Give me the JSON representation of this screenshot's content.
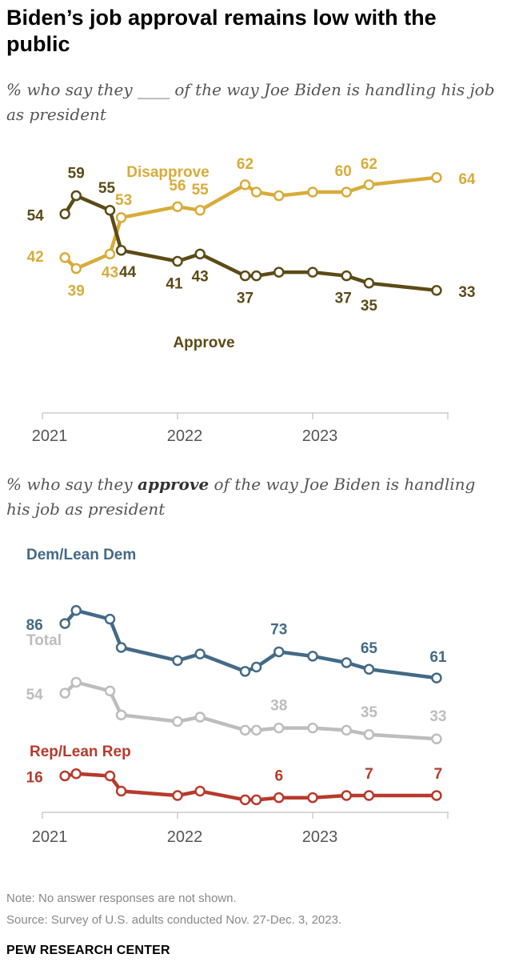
{
  "title": "Biden’s job approval remains low with the public",
  "subtitle1_pre": "% who say they ",
  "subtitle1_blank": "____",
  "subtitle1_post": " of the way Joe Biden is handling his job as president",
  "subtitle2_pre": "% who say they ",
  "subtitle2_em": "approve",
  "subtitle2_post": " of the way Joe Biden is handling his job as president",
  "note": "Note: No answer responses are not shown.",
  "source": "Source: Survey of U.S. adults conducted Nov. 27-Dec. 3, 2023.",
  "brand": "PEW RESEARCH CENTER",
  "colors": {
    "approve": "#5c4b16",
    "disapprove": "#d8ac3a",
    "dem": "#436a87",
    "total": "#bdbdbd",
    "rep": "#b73a2c",
    "axis": "#cccccc",
    "tick_text": "#555555"
  },
  "chart_data": [
    {
      "type": "line",
      "x": [
        "2021-03",
        "2021-04",
        "2021-07",
        "2021-08",
        "2022-01",
        "2022-03",
        "2022-07",
        "2022-08",
        "2022-10",
        "2023-01",
        "2023-04",
        "2023-06",
        "2023-12"
      ],
      "x_ticks": [
        "2021",
        "2022",
        "2023"
      ],
      "ylim": [
        25,
        70
      ],
      "series": [
        {
          "name": "Disapprove",
          "color_key": "disapprove",
          "values": [
            42,
            39,
            43,
            53,
            56,
            55,
            62,
            60,
            59,
            60,
            60,
            62,
            64
          ],
          "labels": [
            "42",
            "39",
            "43",
            "53",
            "56",
            "55",
            "62",
            "",
            "",
            "",
            "60",
            "62",
            "64"
          ]
        },
        {
          "name": "Approve",
          "color_key": "approve",
          "values": [
            54,
            59,
            55,
            44,
            41,
            43,
            37,
            37,
            38,
            38,
            37,
            35,
            33
          ],
          "labels": [
            "54",
            "59",
            "55",
            "44",
            "41",
            "43",
            "37",
            "",
            "",
            "",
            "37",
            "35",
            "33"
          ]
        }
      ]
    },
    {
      "type": "line",
      "x": [
        "2021-03",
        "2021-04",
        "2021-07",
        "2021-08",
        "2022-01",
        "2022-03",
        "2022-07",
        "2022-08",
        "2022-10",
        "2023-01",
        "2023-04",
        "2023-06",
        "2023-12"
      ],
      "x_ticks": [
        "2021",
        "2022",
        "2023"
      ],
      "ylim": [
        0,
        100
      ],
      "series": [
        {
          "name": "Dem/Lean Dem",
          "color_key": "dem",
          "values": [
            86,
            92,
            88,
            75,
            69,
            72,
            64,
            66,
            73,
            71,
            68,
            65,
            61
          ],
          "labels": [
            "86",
            "",
            "",
            "",
            "",
            "",
            "",
            "",
            "73",
            "",
            "",
            "65",
            "61"
          ]
        },
        {
          "name": "Total",
          "color_key": "total",
          "values": [
            54,
            59,
            55,
            44,
            41,
            43,
            37,
            37,
            38,
            38,
            37,
            35,
            33
          ],
          "labels": [
            "54",
            "",
            "",
            "",
            "",
            "",
            "",
            "",
            "38",
            "",
            "",
            "35",
            "33"
          ]
        },
        {
          "name": "Rep/Lean Rep",
          "color_key": "rep",
          "values": [
            16,
            17,
            16,
            9,
            7,
            9,
            5,
            5,
            6,
            6,
            7,
            7,
            7
          ],
          "labels": [
            "16",
            "",
            "",
            "",
            "",
            "",
            "",
            "",
            "6",
            "",
            "",
            "7",
            "7"
          ]
        }
      ]
    }
  ]
}
